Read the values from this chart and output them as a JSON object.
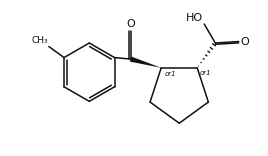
{
  "bg_color": "#ffffff",
  "line_color": "#111111",
  "line_width": 1.1,
  "font_size": 6.5,
  "figsize": [
    2.68,
    1.56
  ],
  "dpi": 100,
  "xlim": [
    0.5,
    9.5
  ],
  "ylim": [
    0.5,
    5.8
  ]
}
